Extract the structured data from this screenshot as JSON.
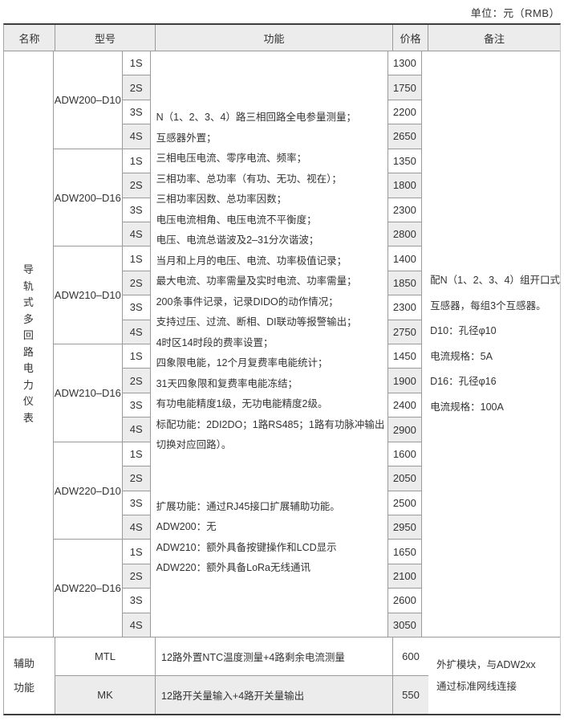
{
  "unit_label": "单位：元（RMB）",
  "colors": {
    "header_bg": "#ececec",
    "row_alt_bg": "#ececec",
    "border_thin": "#9a9a9a",
    "border_thick": "#3d3d3d",
    "text": "#333333"
  },
  "header": {
    "name": "名称",
    "model": "型号",
    "function": "功能",
    "price": "价格",
    "remark": "备注"
  },
  "main_section": {
    "name": "导轨式多回路电力仪表",
    "groups": [
      {
        "model": "ADW200–D10",
        "rows": [
          {
            "sub": "1S",
            "price": "1300"
          },
          {
            "sub": "2S",
            "price": "1750"
          },
          {
            "sub": "3S",
            "price": "2200"
          },
          {
            "sub": "4S",
            "price": "2650"
          }
        ]
      },
      {
        "model": "ADW200–D16",
        "rows": [
          {
            "sub": "1S",
            "price": "1350"
          },
          {
            "sub": "2S",
            "price": "1800"
          },
          {
            "sub": "3S",
            "price": "2300"
          },
          {
            "sub": "4S",
            "price": "2800"
          }
        ]
      },
      {
        "model": "ADW210–D10",
        "rows": [
          {
            "sub": "1S",
            "price": "1400"
          },
          {
            "sub": "2S",
            "price": "1850"
          },
          {
            "sub": "3S",
            "price": "2300"
          },
          {
            "sub": "4S",
            "price": "2750"
          }
        ]
      },
      {
        "model": "ADW210–D16",
        "rows": [
          {
            "sub": "1S",
            "price": "1450"
          },
          {
            "sub": "2S",
            "price": "1900"
          },
          {
            "sub": "3S",
            "price": "2400"
          },
          {
            "sub": "4S",
            "price": "2900"
          }
        ]
      },
      {
        "model": "ADW220–D10",
        "rows": [
          {
            "sub": "1S",
            "price": "1600"
          },
          {
            "sub": "2S",
            "price": "2050"
          },
          {
            "sub": "3S",
            "price": "2500"
          },
          {
            "sub": "4S",
            "price": "2950"
          }
        ]
      },
      {
        "model": "ADW220–D16",
        "rows": [
          {
            "sub": "1S",
            "price": "1650"
          },
          {
            "sub": "2S",
            "price": "2100"
          },
          {
            "sub": "3S",
            "price": "2600"
          },
          {
            "sub": "4S",
            "price": "3050"
          }
        ]
      }
    ],
    "function_lines": [
      "N（1、2、3、4）路三相回路全电参量测量；",
      "互感器外置；",
      "三相电压电流、零序电流、频率；",
      "三相功率、总功率（有功、无功、视在）；",
      "三相功率因数、总功率因数；",
      "电压电流相角、电压电流不平衡度；",
      "电压、电流总谐波及2–31分次谐波；",
      "当月和上月的电压、电流、功率极值记录；",
      "最大电流、功率需量及实时电流、功率需量；",
      "200条事件记录，记录DIDO的动作情况；",
      "支持过压、过流、断相、DI联动等报警输出；",
      "4时区14时段的费率设置；",
      "四象限电能，12个月复费率电能统计；",
      "31天四象限和复费率电能冻结；",
      "有功电能精度1级，无功电能精度2级。",
      "标配功能：2DI2DO；1路RS485；1路有功脉冲输出（可",
      "切换对应回路）。",
      "",
      "",
      "扩展功能：通过RJ45接口扩展辅助功能。",
      "ADW200：无",
      "ADW210：额外具备按键操作和LCD显示",
      "ADW220：额外具备LoRa无线通讯"
    ],
    "remark_lines": [
      "配N（1、2、3、4）组开口式",
      "互感器，每组3个互感器。",
      "D10：孔径φ10",
      "电流规格：5A",
      "D16：孔径φ16",
      "电流规格：100A"
    ]
  },
  "aux_section": {
    "name": "辅助功能",
    "rows": [
      {
        "model": "MTL",
        "function": "12路外置NTC温度测量+4路剩余电流测量",
        "price": "600"
      },
      {
        "model": "MK",
        "function": "12路开关量输入+4路开关量输出",
        "price": "550"
      }
    ],
    "remark_lines": [
      "外扩模块，与ADW2xx",
      "通过标准网线连接"
    ]
  }
}
